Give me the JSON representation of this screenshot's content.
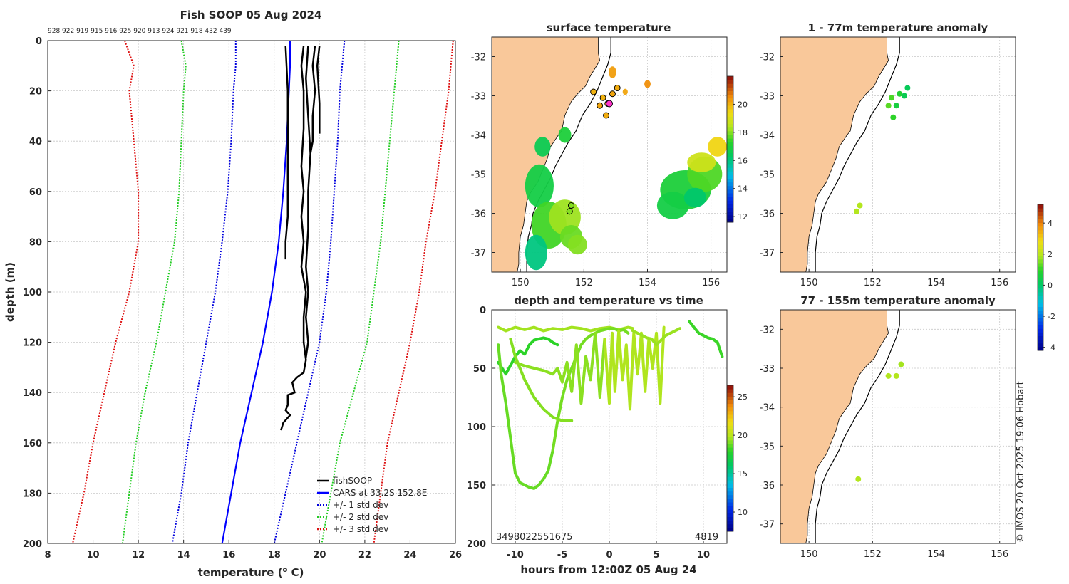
{
  "copyright": "© IMOS 20-Oct-2025 19:06 Hobart",
  "colors": {
    "land": "#f9c89a",
    "obs": "#000000",
    "clim": "#0000ff",
    "std1": "#0000dd",
    "std2": "#22cc22",
    "std3": "#dd1111",
    "coast": "#000000"
  },
  "profile_chart": {
    "type": "line",
    "title": "Fish SOOP 05 Aug 2024",
    "top_ids": "928 922 919 915 916 925 920 913 924 921 918 432 439",
    "xlabel": "temperature (°C)",
    "xlabel_main": "temperature (",
    "xlabel_unit": "o",
    "xlabel_end": " C)",
    "ylabel": "depth (m)",
    "xlim": [
      8,
      26
    ],
    "ylim": [
      0,
      200
    ],
    "xticks": [
      "8",
      "10",
      "12",
      "14",
      "16",
      "18",
      "20",
      "22",
      "24",
      "26"
    ],
    "yticks": [
      "0",
      "20",
      "40",
      "60",
      "80",
      "100",
      "120",
      "140",
      "160",
      "180",
      "200"
    ],
    "legend": [
      "fishSOOP",
      "CARS at 33.2S 152.8E",
      "+/- 1 std dev",
      "+/- 2 std dev",
      "+/- 3 std dev"
    ],
    "depth": [
      0,
      10,
      20,
      40,
      60,
      80,
      100,
      120,
      140,
      160,
      180,
      200
    ],
    "cars_mean": [
      18.7,
      18.7,
      18.65,
      18.55,
      18.4,
      18.2,
      17.9,
      17.5,
      17.0,
      16.5,
      16.1,
      15.7
    ],
    "std1_low": [
      16.3,
      16.3,
      16.2,
      16.1,
      15.95,
      15.7,
      15.4,
      15.0,
      14.6,
      14.2,
      13.9,
      13.5
    ],
    "std1_high": [
      21.1,
      21.0,
      20.9,
      20.8,
      20.65,
      20.5,
      20.3,
      20.0,
      19.5,
      19.0,
      18.5,
      18.0
    ],
    "std2_low": [
      13.9,
      14.1,
      14.0,
      13.9,
      13.8,
      13.6,
      13.2,
      12.8,
      12.3,
      11.9,
      11.6,
      11.3
    ],
    "std2_high": [
      23.5,
      23.4,
      23.3,
      23.1,
      22.9,
      22.7,
      22.4,
      22.1,
      21.5,
      20.9,
      20.5,
      20.1
    ],
    "std3_low": [
      11.4,
      11.8,
      11.6,
      11.8,
      12.0,
      12.0,
      11.6,
      11.0,
      10.5,
      10.0,
      9.6,
      9.1
    ],
    "std3_high": [
      25.9,
      25.8,
      25.7,
      25.4,
      25.1,
      24.7,
      24.4,
      24.0,
      23.5,
      23.0,
      22.7,
      22.4
    ],
    "fishsoop_profiles": [
      {
        "t": [
          18.5,
          18.6,
          18.6,
          18.6,
          18.6,
          18.5,
          18.5
        ],
        "d": [
          2,
          20,
          40,
          55,
          70,
          80,
          87
        ]
      },
      {
        "t": [
          19.3,
          19.2,
          19.3,
          19.3,
          19.2,
          19.3,
          19.2,
          19.3,
          19.2,
          19.4,
          19.3,
          19.3,
          19.4,
          19.3,
          19.0,
          18.8,
          18.9,
          18.6,
          18.6,
          18.5,
          18.7,
          18.4,
          18.3
        ],
        "d": [
          2,
          10,
          20,
          35,
          50,
          60,
          70,
          80,
          90,
          100,
          110,
          120,
          127,
          132,
          134,
          136,
          140,
          141,
          145,
          147,
          149,
          152,
          155
        ]
      },
      {
        "t": [
          19.5,
          19.4,
          19.5,
          19.6,
          19.5,
          19.5,
          19.4,
          19.5,
          19.4,
          19.5,
          19.4
        ],
        "d": [
          2,
          15,
          30,
          45,
          60,
          75,
          90,
          100,
          110,
          120,
          126
        ]
      },
      {
        "t": [
          19.8,
          19.7,
          19.8,
          19.7,
          19.7,
          19.6
        ],
        "d": [
          2,
          10,
          20,
          30,
          40,
          45
        ]
      },
      {
        "t": [
          20.0,
          19.9,
          20.0,
          20.0
        ],
        "d": [
          2,
          10,
          25,
          37
        ]
      }
    ]
  },
  "sst_map": {
    "type": "heatmap",
    "title": "surface temperature",
    "xlim": [
      149.1,
      156.5
    ],
    "ylim": [
      -37.5,
      -31.5
    ],
    "xticks": [
      "150",
      "152",
      "154",
      "156"
    ],
    "yticks": [
      "-32",
      "-33",
      "-34",
      "-35",
      "-36",
      "-37"
    ],
    "colorbar": {
      "range": [
        11.6,
        22.0
      ],
      "ticks": [
        "12",
        "14",
        "16",
        "18",
        "20"
      ]
    },
    "stations": [
      {
        "lon": 152.3,
        "lat": -32.9,
        "temp": 20.0
      },
      {
        "lon": 152.6,
        "lat": -33.05,
        "temp": 20.0
      },
      {
        "lon": 152.9,
        "lat": -32.95,
        "temp": 20.2
      },
      {
        "lon": 153.05,
        "lat": -32.8,
        "temp": 20.1
      },
      {
        "lon": 152.75,
        "lat": -33.2,
        "temp": 20.0
      },
      {
        "lon": 152.5,
        "lat": -33.25,
        "temp": 20.2
      },
      {
        "lon": 152.7,
        "lat": -33.5,
        "temp": 20.1
      },
      {
        "lon": 151.6,
        "lat": -35.8,
        "temp": 18.0
      },
      {
        "lon": 151.55,
        "lat": -35.95,
        "temp": 18.0
      }
    ],
    "current_position": {
      "lon": 152.8,
      "lat": -33.2
    }
  },
  "anomaly_shallow": {
    "type": "scatter",
    "title": "1 - 77m temperature anomaly",
    "xlim": [
      149.1,
      156.5
    ],
    "ylim": [
      -37.5,
      -31.5
    ],
    "xticks": [
      "150",
      "152",
      "154",
      "156"
    ],
    "yticks": [
      "-32",
      "-33",
      "-34",
      "-35",
      "-36",
      "-37"
    ],
    "points": [
      {
        "lon": 152.6,
        "lat": -33.05,
        "anom": 1.2
      },
      {
        "lon": 152.85,
        "lat": -32.95,
        "anom": 0.8
      },
      {
        "lon": 153.1,
        "lat": -32.8,
        "anom": 0.2
      },
      {
        "lon": 153.0,
        "lat": -33.0,
        "anom": 0.3
      },
      {
        "lon": 152.5,
        "lat": -33.25,
        "anom": 1.3
      },
      {
        "lon": 152.75,
        "lat": -33.25,
        "anom": 0.6
      },
      {
        "lon": 152.65,
        "lat": -33.55,
        "anom": 1.0
      },
      {
        "lon": 151.6,
        "lat": -35.8,
        "anom": 1.9
      },
      {
        "lon": 151.5,
        "lat": -35.95,
        "anom": 1.9
      }
    ]
  },
  "anomaly_deep": {
    "type": "scatter",
    "title": "77 - 155m temperature anomaly",
    "xlim": [
      149.1,
      156.5
    ],
    "ylim": [
      -37.5,
      -31.5
    ],
    "xticks": [
      "150",
      "152",
      "154",
      "156"
    ],
    "yticks": [
      "-32",
      "-33",
      "-34",
      "-35",
      "-36",
      "-37"
    ],
    "points": [
      {
        "lon": 152.9,
        "lat": -32.9,
        "anom": 1.8
      },
      {
        "lon": 152.5,
        "lat": -33.2,
        "anom": 1.9
      },
      {
        "lon": 152.75,
        "lat": -33.2,
        "anom": 1.9
      },
      {
        "lon": 151.55,
        "lat": -35.85,
        "anom": 1.9
      }
    ]
  },
  "anomaly_colorbar": {
    "range": [
      -4.2,
      5.2
    ],
    "ticks": [
      "-4",
      "-2",
      "0",
      "2",
      "4"
    ]
  },
  "time_series": {
    "type": "scatter",
    "title": "depth and temperature vs time",
    "xlabel": "hours from 12:00Z 05 Aug 24",
    "ylabel": "",
    "xlim": [
      -12.5,
      12.5
    ],
    "ylim": [
      0,
      200
    ],
    "xticks": [
      "-10",
      "-5",
      "0",
      "5",
      "10"
    ],
    "yticks": [
      "0",
      "50",
      "100",
      "150",
      "200"
    ],
    "bottom_labels_left": "3498022551675",
    "bottom_labels_right": "4819",
    "colorbar": {
      "range": [
        7.5,
        26.5
      ],
      "ticks": [
        "10",
        "15",
        "20",
        "25"
      ]
    },
    "tracks": [
      {
        "t": [
          -11.8,
          -11,
          -10,
          -9,
          -8,
          -7,
          -6,
          -5,
          -4,
          -3,
          -2,
          -1,
          0,
          1,
          2,
          2.5
        ],
        "d": [
          15,
          18,
          15,
          17,
          15,
          18,
          16,
          17,
          15,
          16,
          18,
          16,
          15,
          17,
          15,
          16
        ],
        "temp": 19.6
      },
      {
        "t": [
          -11.8,
          -11,
          -10,
          -9.5,
          -9,
          -8.5,
          -8,
          -7.5,
          -7,
          -6.5,
          -6,
          -5.5
        ],
        "d": [
          45,
          55,
          40,
          35,
          38,
          30,
          26,
          25,
          24,
          25,
          28,
          30
        ],
        "temp": 18.0
      },
      {
        "t": [
          -11.8,
          -11.5,
          -11,
          -10.5,
          -10,
          -9.5,
          -9,
          -8.5,
          -8,
          -7.5,
          -7,
          -6.5,
          -6
        ],
        "d": [
          30,
          55,
          80,
          110,
          140,
          148,
          150,
          152,
          153,
          150,
          145,
          138,
          120
        ],
        "temp": 18.8
      },
      {
        "t": [
          -6,
          -5.5,
          -5,
          -4.5,
          -4,
          -3.5,
          -3,
          -2.5,
          -2,
          -1.5,
          -1,
          -0.5,
          0,
          0.5,
          1,
          1.5,
          2
        ],
        "d": [
          120,
          95,
          75,
          60,
          50,
          40,
          30,
          25,
          22,
          20,
          18,
          17,
          16,
          16,
          18,
          17,
          20
        ],
        "temp": 19.0
      },
      {
        "t": [
          -10.5,
          -10,
          -9,
          -8,
          -7,
          -6,
          -5,
          -4
        ],
        "d": [
          25,
          40,
          60,
          75,
          85,
          92,
          95,
          95
        ],
        "temp": 19.2
      },
      {
        "t": [
          -10,
          -9,
          -8,
          -7,
          -6,
          -5.5,
          -5,
          -4.5,
          -4,
          -3.5,
          -3,
          -2.5,
          -2,
          -1.5,
          -1,
          -0.5
        ],
        "d": [
          45,
          48,
          50,
          52,
          55,
          50,
          62,
          45,
          70,
          30,
          80,
          40,
          60,
          20,
          75,
          25
        ],
        "temp": 19.3
      },
      {
        "t": [
          -0.5,
          0,
          0.3,
          0.6,
          1,
          1.4,
          1.8,
          2.2,
          2.6,
          3,
          3.4,
          3.8,
          4.2,
          4.6,
          5,
          5.4,
          5.8
        ],
        "d": [
          25,
          80,
          20,
          70,
          18,
          60,
          30,
          85,
          20,
          55,
          20,
          70,
          25,
          50,
          20,
          80,
          15
        ],
        "temp": 19.8
      },
      {
        "t": [
          2.5,
          3,
          3.5,
          4,
          4.5,
          5,
          5.5,
          6,
          6.5,
          7,
          7.5
        ],
        "d": [
          18,
          20,
          22,
          24,
          25,
          30,
          26,
          22,
          20,
          18,
          16
        ],
        "temp": 19.5
      },
      {
        "t": [
          8.5,
          9,
          9.5,
          10,
          10.5,
          11,
          11.5,
          12
        ],
        "d": [
          10,
          15,
          20,
          22,
          24,
          25,
          28,
          40
        ],
        "temp": 18.2
      }
    ]
  }
}
